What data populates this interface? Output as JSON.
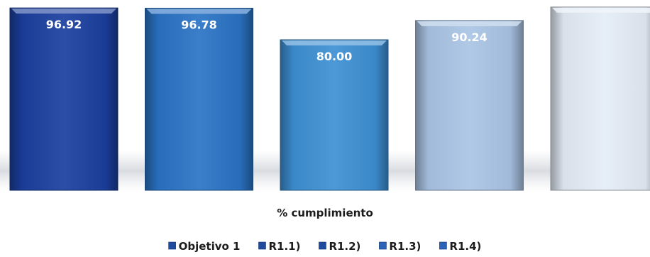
{
  "chart_data": {
    "type": "bar",
    "title": "",
    "xlabel": "% cumplimiento",
    "ylabel": "",
    "ylim": [
      0,
      100
    ],
    "grid": false,
    "legend_position": "bottom",
    "categories": [
      "% cumplimiento"
    ],
    "series": [
      {
        "name": "Objetivo 1",
        "values": [
          96.92
        ],
        "label": "96.92",
        "color": "#1b3f9e"
      },
      {
        "name": "R1.1)",
        "values": [
          96.78
        ],
        "label": "96.78",
        "color": "#2a73c4"
      },
      {
        "name": "R1.2)",
        "values": [
          80.0
        ],
        "label": "80.00",
        "color": "#3d8fd2"
      },
      {
        "name": "R1.3)",
        "values": [
          90.24
        ],
        "label": "90.24",
        "color": "#a9c4e4"
      },
      {
        "name": "R1.4)",
        "values": [
          97.4
        ],
        "label": "",
        "color": "#e4ecf6"
      }
    ]
  }
}
